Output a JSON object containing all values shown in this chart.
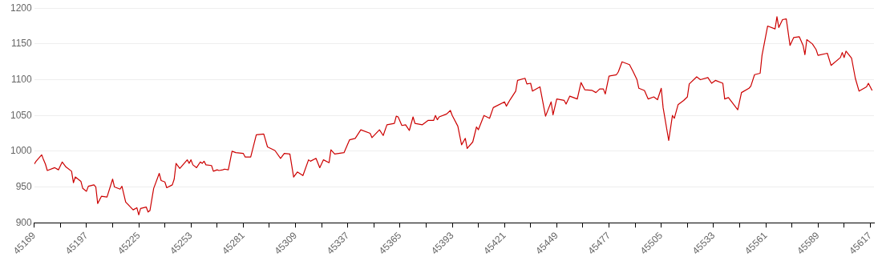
{
  "chart_data": {
    "type": "line",
    "x": [
      45169,
      45170,
      45173,
      45174,
      45175,
      45176,
      45180,
      45182,
      45184,
      45186,
      45189,
      45190,
      45191,
      45194,
      45195,
      45197,
      45198,
      45201,
      45202,
      45203,
      45205,
      45208,
      45211,
      45212,
      45215,
      45216,
      45218,
      45222,
      45224,
      45225,
      45226,
      45229,
      45230,
      45231,
      45233,
      45236,
      45237,
      45239,
      45240,
      45243,
      45244,
      45245,
      45247,
      45251,
      45252,
      45253,
      45254,
      45256,
      45258,
      45259,
      45260,
      45261,
      45264,
      45265,
      45267,
      45268,
      45270,
      45271,
      45273,
      45275,
      45277,
      45281,
      45282,
      45285,
      45288,
      45292,
      45294,
      45298,
      45301,
      45303,
      45306,
      45308,
      45310,
      45313,
      45316,
      45317,
      45320,
      45322,
      45324,
      45327,
      45328,
      45330,
      45335,
      45338,
      45341,
      45344,
      45349,
      45350,
      45354,
      45356,
      45358,
      45362,
      45363,
      45364,
      45366,
      45368,
      45370,
      45372,
      45373,
      45377,
      45380,
      45383,
      45384,
      45385,
      45386,
      45390,
      45392,
      45393,
      45396,
      45398,
      45400,
      45401,
      45404,
      45406,
      45407,
      45410,
      45413,
      45415,
      45421,
      45422,
      45424,
      45427,
      45428,
      45432,
      45433,
      45435,
      45436,
      45440,
      45443,
      45446,
      45447,
      45449,
      45453,
      45454,
      45456,
      45460,
      45462,
      45464,
      45468,
      45470,
      45472,
      45474,
      45475,
      45477,
      45481,
      45482,
      45484,
      45488,
      45490,
      45492,
      45493,
      45496,
      45498,
      45501,
      45503,
      45505,
      45506,
      45509,
      45511,
      45512,
      45514,
      45517,
      45519,
      45520,
      45524,
      45526,
      45530,
      45532,
      45534,
      45538,
      45539,
      45541,
      45546,
      45548,
      45552,
      45553,
      45555,
      45558,
      45559,
      45562,
      45566,
      45567,
      45568,
      45570,
      45572,
      45574,
      45576,
      45579,
      45581,
      45582,
      45583,
      45586,
      45588,
      45589,
      45594,
      45596,
      45601,
      45602,
      45603,
      45604,
      45607,
      45609,
      45611,
      45615,
      45616,
      45618
    ],
    "values": [
      982,
      986,
      995,
      988,
      982,
      973,
      977,
      974,
      985,
      978,
      972,
      956,
      964,
      958,
      948,
      944,
      951,
      953,
      950,
      927,
      937,
      936,
      961,
      950,
      947,
      951,
      929,
      918,
      921,
      911,
      920,
      922,
      915,
      917,
      948,
      969,
      959,
      957,
      949,
      953,
      961,
      983,
      976,
      988,
      983,
      988,
      981,
      977,
      985,
      983,
      986,
      981,
      980,
      972,
      974,
      973,
      974,
      975,
      974,
      1000,
      998,
      997,
      992,
      992,
      1023,
      1024,
      1006,
      1001,
      990,
      997,
      996,
      964,
      971,
      966,
      988,
      986,
      990,
      977,
      988,
      984,
      1002,
      996,
      998,
      1016,
      1018,
      1030,
      1025,
      1019,
      1030,
      1022,
      1037,
      1039,
      1049,
      1048,
      1036,
      1037,
      1029,
      1048,
      1039,
      1037,
      1043,
      1043,
      1050,
      1044,
      1048,
      1052,
      1057,
      1050,
      1035,
      1009,
      1018,
      1004,
      1013,
      1034,
      1030,
      1050,
      1046,
      1061,
      1069,
      1063,
      1072,
      1084,
      1099,
      1102,
      1094,
      1095,
      1084,
      1090,
      1049,
      1069,
      1051,
      1073,
      1071,
      1066,
      1077,
      1073,
      1096,
      1086,
      1085,
      1082,
      1087,
      1087,
      1080,
      1105,
      1107,
      1111,
      1125,
      1121,
      1111,
      1100,
      1088,
      1085,
      1073,
      1076,
      1072,
      1088,
      1061,
      1015,
      1050,
      1046,
      1065,
      1071,
      1076,
      1094,
      1104,
      1100,
      1103,
      1095,
      1099,
      1095,
      1073,
      1075,
      1058,
      1082,
      1088,
      1091,
      1107,
      1109,
      1134,
      1175,
      1171,
      1188,
      1173,
      1184,
      1185,
      1148,
      1159,
      1160,
      1148,
      1135,
      1156,
      1150,
      1142,
      1134,
      1137,
      1120,
      1131,
      1138,
      1131,
      1140,
      1130,
      1102,
      1084,
      1090,
      1095,
      1085
    ],
    "color": "#cc0000",
    "xlim": [
      45169,
      45619
    ],
    "xticks": [
      45169,
      {
        "value": 45183,
        "label": null
      },
      45197,
      {
        "value": 45211,
        "label": null
      },
      45225,
      {
        "value": 45239,
        "label": null
      },
      45253,
      {
        "value": 45267,
        "label": null
      },
      45281,
      {
        "value": 45295,
        "label": null
      },
      45309,
      {
        "value": 45323,
        "label": null
      },
      45337,
      {
        "value": 45351,
        "label": null
      },
      45365,
      {
        "value": 45379,
        "label": null
      },
      45393,
      {
        "value": 45407,
        "label": null
      },
      45421,
      {
        "value": 45435,
        "label": null
      },
      45449,
      {
        "value": 45463,
        "label": null
      },
      45477,
      {
        "value": 45491,
        "label": null
      },
      45505,
      {
        "value": 45519,
        "label": null
      },
      45533,
      {
        "value": 45547,
        "label": null
      },
      45561,
      {
        "value": 45575,
        "label": null
      },
      45589,
      {
        "value": 45603,
        "label": null
      },
      45617
    ],
    "ylim": [
      900,
      1200
    ],
    "yticks": [
      900,
      950,
      1000,
      1050,
      1100,
      1150,
      1200
    ],
    "grid": "y",
    "marker": "none",
    "line_style": "solid",
    "legend": false
  }
}
